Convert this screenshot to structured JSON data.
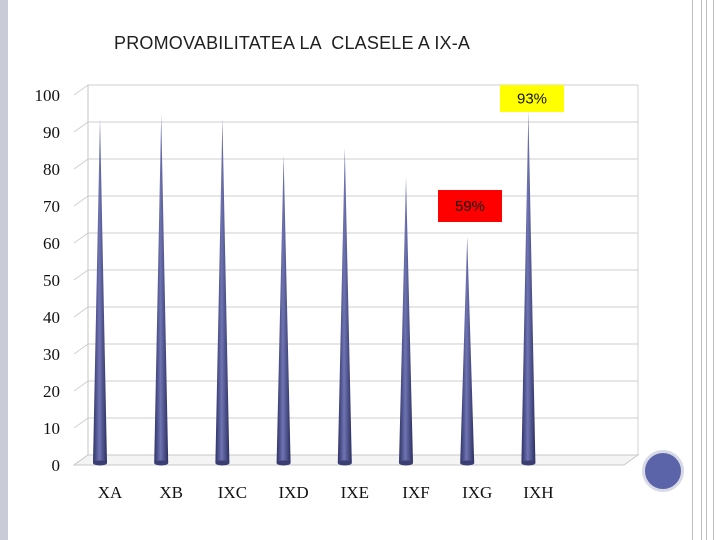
{
  "slide": {
    "title": "PROMOVABILITATEA LA  CLASELE A IX-A",
    "accent_color": "#5b64a8"
  },
  "chart_data": {
    "type": "bar",
    "style": "3d-cone",
    "title": "PROMOVABILITATEA LA  CLASELE A IX-A",
    "xlabel": "",
    "ylabel": "",
    "categories": [
      "XA",
      "XB",
      "IXC",
      "IXD",
      "IXE",
      "IXF",
      "IXG",
      "IXH"
    ],
    "values": [
      91,
      92,
      91,
      81,
      83,
      75,
      59,
      93
    ],
    "ylim": [
      0,
      100
    ],
    "yticks": [
      0,
      10,
      20,
      30,
      40,
      50,
      60,
      70,
      80,
      90,
      100
    ],
    "grid": true,
    "legend": "none",
    "bar_color": "#4a4f86",
    "annotations": [
      {
        "category": "IXH",
        "text": "93%",
        "background": "#ffff00"
      },
      {
        "category": "IXG",
        "text": "59%",
        "background": "#ff0000"
      }
    ]
  }
}
